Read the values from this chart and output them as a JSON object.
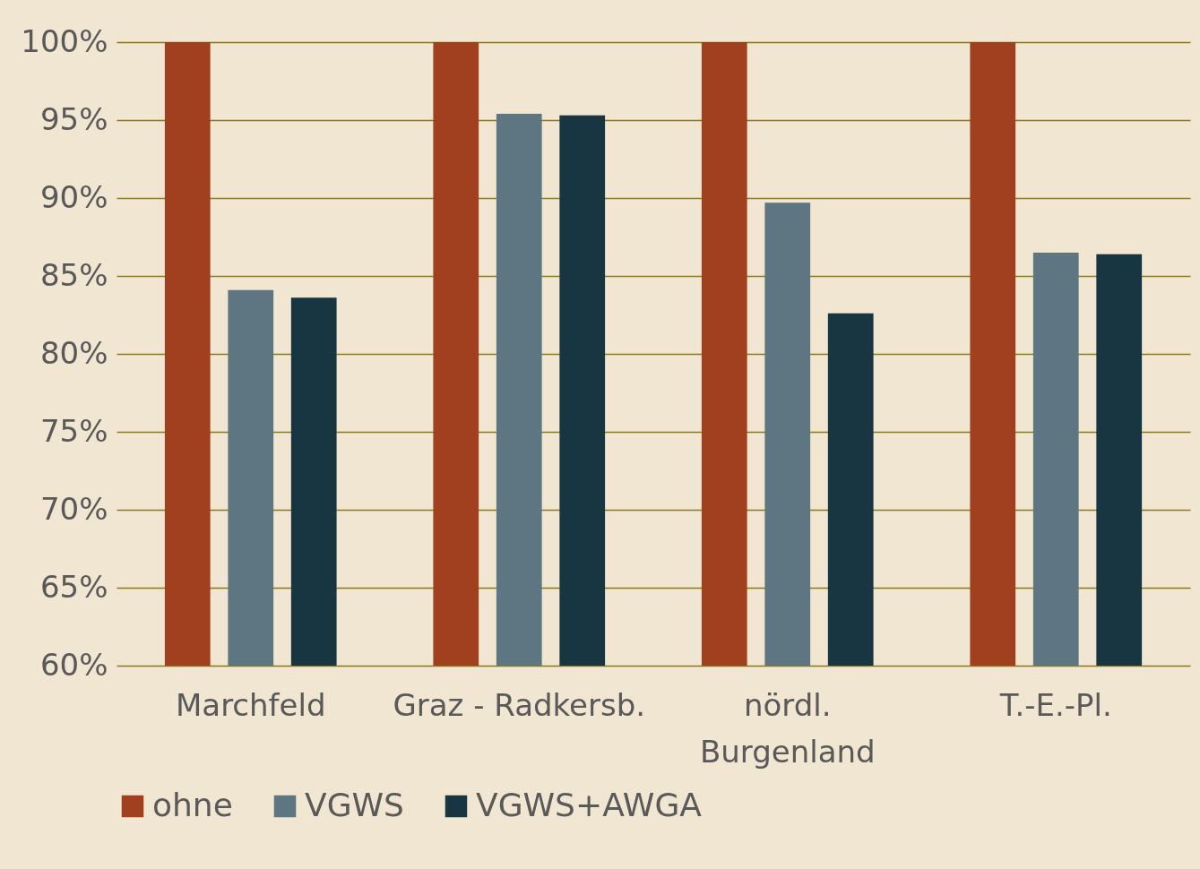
{
  "chart_data": {
    "type": "bar",
    "categories": [
      "Marchfeld",
      "Graz - Radkersb.",
      "nördl. Burgenland",
      "T.-E.-Pl."
    ],
    "series": [
      {
        "name": "ohne",
        "color": "#a0401f",
        "values": [
          100,
          100,
          100,
          100
        ]
      },
      {
        "name": "VGWS",
        "color": "#5e7582",
        "values": [
          84.1,
          95.4,
          89.7,
          86.5
        ]
      },
      {
        "name": "VGWS+AWGA",
        "color": "#183542",
        "values": [
          83.6,
          95.3,
          82.6,
          86.4
        ]
      }
    ],
    "ylim": [
      60,
      100
    ],
    "yticks": [
      {
        "value": 60,
        "label": "60%"
      },
      {
        "value": 65,
        "label": "65%"
      },
      {
        "value": 70,
        "label": "70%"
      },
      {
        "value": 75,
        "label": "75%"
      },
      {
        "value": 80,
        "label": "80%"
      },
      {
        "value": 85,
        "label": "85%"
      },
      {
        "value": 90,
        "label": "90%"
      },
      {
        "value": 95,
        "label": "95%"
      },
      {
        "value": 100,
        "label": "100%"
      }
    ],
    "grid": "y",
    "legend": "bottom"
  }
}
